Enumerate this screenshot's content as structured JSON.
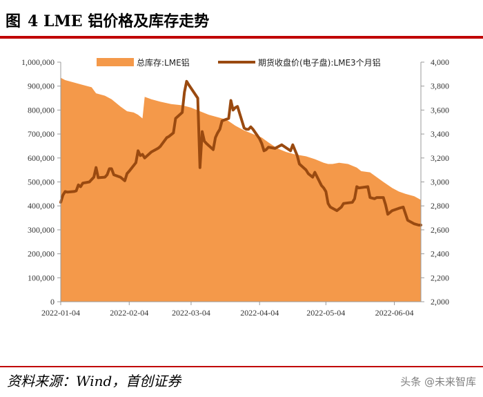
{
  "header": {
    "figure_label": "图",
    "title": "4 LME 铝价格及库存走势"
  },
  "footer": {
    "source": "资料来源：Wind，首创证券",
    "watermark": "头条 @未来智库"
  },
  "colors": {
    "rule": "#c00000",
    "inventory_area": "#f4994a",
    "price_line": "#9a4a10"
  },
  "chart_data": {
    "type": "area",
    "legend": [
      "总库存:LME铝",
      "期货收盘价(电子盘):LME3个月铝"
    ],
    "legend_position": "top",
    "grid": false,
    "x_axis": {
      "range": [
        "2022-01-04",
        "2022-06-16"
      ],
      "tick_labels": [
        "2022-01-04",
        "2022-02-04",
        "2022-03-04",
        "2022-04-04",
        "2022-05-04",
        "2022-06-04"
      ]
    },
    "y_left": {
      "range": [
        0,
        1000000
      ],
      "tick_labels": [
        "0",
        "100,000",
        "200,000",
        "300,000",
        "400,000",
        "500,000",
        "600,000",
        "700,000",
        "800,000",
        "900,000",
        "1,000,000"
      ]
    },
    "y_right": {
      "range": [
        2000,
        4000
      ],
      "tick_labels": [
        "2,000",
        "2,200",
        "2,400",
        "2,600",
        "2,800",
        "3,000",
        "3,200",
        "3,400",
        "3,600",
        "3,800",
        "4,000"
      ]
    },
    "series": [
      {
        "name": "总库存:LME铝",
        "type": "area",
        "axis": "left",
        "points": [
          [
            "2022-01-04",
            935000
          ],
          [
            "2022-01-06",
            925000
          ],
          [
            "2022-01-10",
            915000
          ],
          [
            "2022-01-14",
            905000
          ],
          [
            "2022-01-18",
            895000
          ],
          [
            "2022-01-20",
            870000
          ],
          [
            "2022-01-24",
            860000
          ],
          [
            "2022-01-27",
            845000
          ],
          [
            "2022-01-31",
            815000
          ],
          [
            "2022-02-03",
            795000
          ],
          [
            "2022-02-06",
            790000
          ],
          [
            "2022-02-08",
            780000
          ],
          [
            "2022-02-10",
            765000
          ],
          [
            "2022-02-11",
            855000
          ],
          [
            "2022-02-14",
            845000
          ],
          [
            "2022-02-18",
            835000
          ],
          [
            "2022-02-23",
            825000
          ],
          [
            "2022-02-28",
            820000
          ],
          [
            "2022-03-04",
            810000
          ],
          [
            "2022-03-08",
            795000
          ],
          [
            "2022-03-12",
            780000
          ],
          [
            "2022-03-16",
            770000
          ],
          [
            "2022-03-20",
            760000
          ],
          [
            "2022-03-24",
            735000
          ],
          [
            "2022-03-28",
            715000
          ],
          [
            "2022-04-01",
            700000
          ],
          [
            "2022-04-05",
            685000
          ],
          [
            "2022-04-08",
            665000
          ],
          [
            "2022-04-12",
            640000
          ],
          [
            "2022-04-16",
            625000
          ],
          [
            "2022-04-20",
            615000
          ],
          [
            "2022-04-25",
            607000
          ],
          [
            "2022-04-29",
            595000
          ],
          [
            "2022-05-03",
            580000
          ],
          [
            "2022-05-05",
            575000
          ],
          [
            "2022-05-07",
            575000
          ],
          [
            "2022-05-10",
            580000
          ],
          [
            "2022-05-14",
            575000
          ],
          [
            "2022-05-18",
            560000
          ],
          [
            "2022-05-20",
            545000
          ],
          [
            "2022-05-24",
            540000
          ],
          [
            "2022-05-27",
            520000
          ],
          [
            "2022-05-30",
            500000
          ],
          [
            "2022-06-03",
            475000
          ],
          [
            "2022-06-06",
            460000
          ],
          [
            "2022-06-09",
            450000
          ],
          [
            "2022-06-13",
            440000
          ],
          [
            "2022-06-15",
            430000
          ],
          [
            "2022-06-16",
            425000
          ]
        ]
      },
      {
        "name": "期货收盘价(电子盘):LME3个月铝",
        "type": "line",
        "axis": "right",
        "points": [
          [
            "2022-01-04",
            2830
          ],
          [
            "2022-01-05",
            2890
          ],
          [
            "2022-01-06",
            2920
          ],
          [
            "2022-01-07",
            2915
          ],
          [
            "2022-01-10",
            2920
          ],
          [
            "2022-01-11",
            2925
          ],
          [
            "2022-01-12",
            2975
          ],
          [
            "2022-01-13",
            2960
          ],
          [
            "2022-01-14",
            2990
          ],
          [
            "2022-01-17",
            3000
          ],
          [
            "2022-01-18",
            3020
          ],
          [
            "2022-01-19",
            3040
          ],
          [
            "2022-01-20",
            3120
          ],
          [
            "2022-01-21",
            3035
          ],
          [
            "2022-01-24",
            3040
          ],
          [
            "2022-01-25",
            3060
          ],
          [
            "2022-01-26",
            3110
          ],
          [
            "2022-01-27",
            3110
          ],
          [
            "2022-01-28",
            3060
          ],
          [
            "2022-01-31",
            3040
          ],
          [
            "2022-02-02",
            3010
          ],
          [
            "2022-02-03",
            3070
          ],
          [
            "2022-02-04",
            3090
          ],
          [
            "2022-02-07",
            3160
          ],
          [
            "2022-02-08",
            3260
          ],
          [
            "2022-02-09",
            3220
          ],
          [
            "2022-02-10",
            3230
          ],
          [
            "2022-02-11",
            3200
          ],
          [
            "2022-02-14",
            3250
          ],
          [
            "2022-02-15",
            3260
          ],
          [
            "2022-02-17",
            3280
          ],
          [
            "2022-02-18",
            3295
          ],
          [
            "2022-02-21",
            3370
          ],
          [
            "2022-02-22",
            3380
          ],
          [
            "2022-02-24",
            3410
          ],
          [
            "2022-02-25",
            3530
          ],
          [
            "2022-02-28",
            3580
          ],
          [
            "2022-03-01",
            3750
          ],
          [
            "2022-03-02",
            3840
          ],
          [
            "2022-03-03",
            3810
          ],
          [
            "2022-03-07",
            3700
          ],
          [
            "2022-03-08",
            3120
          ],
          [
            "2022-03-09",
            3420
          ],
          [
            "2022-03-10",
            3340
          ],
          [
            "2022-03-11",
            3320
          ],
          [
            "2022-03-14",
            3270
          ],
          [
            "2022-03-15",
            3370
          ],
          [
            "2022-03-16",
            3410
          ],
          [
            "2022-03-17",
            3440
          ],
          [
            "2022-03-18",
            3510
          ],
          [
            "2022-03-21",
            3530
          ],
          [
            "2022-03-22",
            3680
          ],
          [
            "2022-03-23",
            3600
          ],
          [
            "2022-03-24",
            3620
          ],
          [
            "2022-03-25",
            3630
          ],
          [
            "2022-03-28",
            3450
          ],
          [
            "2022-03-29",
            3440
          ],
          [
            "2022-03-30",
            3440
          ],
          [
            "2022-03-31",
            3460
          ],
          [
            "2022-04-01",
            3440
          ],
          [
            "2022-04-04",
            3360
          ],
          [
            "2022-04-05",
            3320
          ],
          [
            "2022-04-06",
            3260
          ],
          [
            "2022-04-07",
            3270
          ],
          [
            "2022-04-08",
            3290
          ],
          [
            "2022-04-11",
            3280
          ],
          [
            "2022-04-12",
            3290
          ],
          [
            "2022-04-14",
            3310
          ],
          [
            "2022-04-18",
            3260
          ],
          [
            "2022-04-19",
            3310
          ],
          [
            "2022-04-21",
            3220
          ],
          [
            "2022-04-22",
            3150
          ],
          [
            "2022-04-25",
            3100
          ],
          [
            "2022-04-26",
            3070
          ],
          [
            "2022-04-28",
            3040
          ],
          [
            "2022-04-29",
            3080
          ],
          [
            "2022-05-02",
            2970
          ],
          [
            "2022-05-03",
            2950
          ],
          [
            "2022-05-04",
            2920
          ],
          [
            "2022-05-05",
            2820
          ],
          [
            "2022-05-06",
            2790
          ],
          [
            "2022-05-09",
            2760
          ],
          [
            "2022-05-11",
            2790
          ],
          [
            "2022-05-12",
            2820
          ],
          [
            "2022-05-16",
            2830
          ],
          [
            "2022-05-17",
            2860
          ],
          [
            "2022-05-18",
            2960
          ],
          [
            "2022-05-19",
            2950
          ],
          [
            "2022-05-23",
            2960
          ],
          [
            "2022-05-24",
            2870
          ],
          [
            "2022-05-26",
            2860
          ],
          [
            "2022-05-27",
            2870
          ],
          [
            "2022-05-30",
            2870
          ],
          [
            "2022-05-31",
            2810
          ],
          [
            "2022-06-01",
            2730
          ],
          [
            "2022-06-03",
            2760
          ],
          [
            "2022-06-06",
            2780
          ],
          [
            "2022-06-08",
            2790
          ],
          [
            "2022-06-10",
            2680
          ],
          [
            "2022-06-13",
            2650
          ],
          [
            "2022-06-15",
            2640
          ],
          [
            "2022-06-16",
            2640
          ]
        ]
      }
    ]
  }
}
